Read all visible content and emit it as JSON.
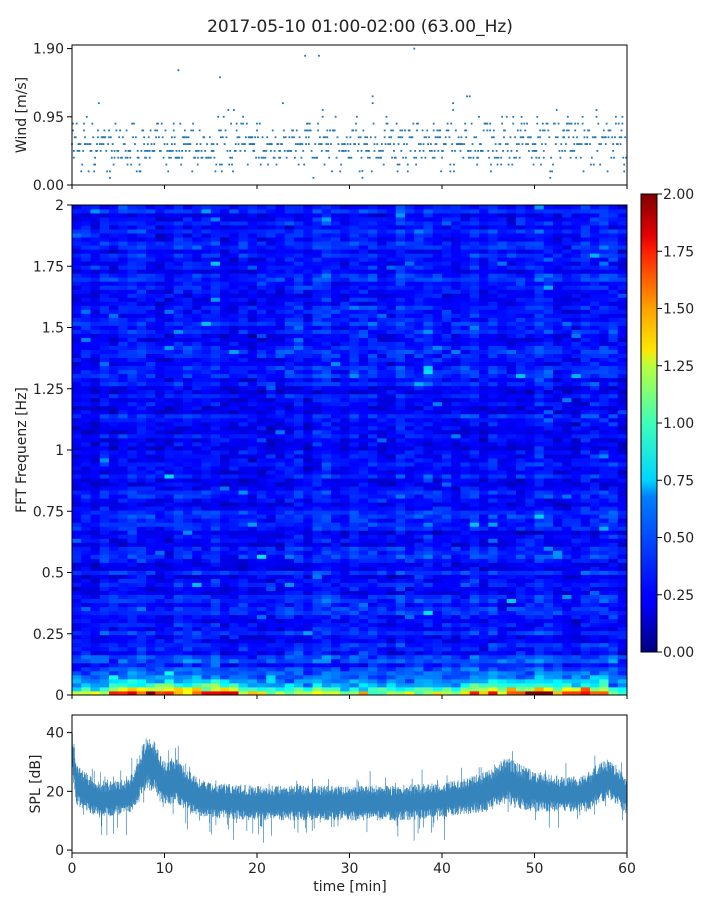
{
  "chart_data": [
    {
      "type": "scatter",
      "title": "2017-05-10 01:00-02:00 (63.00_Hz)",
      "xlabel": "",
      "ylabel": "Wind [m/s]",
      "xlim": [
        0,
        60
      ],
      "ylim": [
        0,
        1.95
      ],
      "yticks": [
        "0.00",
        "0.95",
        "1.90"
      ],
      "ytick_values": [
        0,
        0.95,
        1.9
      ],
      "color": "#1f77b4",
      "x_step_min": 0.1,
      "typical_speed_ms": 0.55,
      "quantization_ms": 0.095,
      "peaks": [
        {
          "x": 25.2,
          "y": 1.8
        },
        {
          "x": 26.7,
          "y": 1.8
        },
        {
          "x": 37.0,
          "y": 1.9
        },
        {
          "x": 11.5,
          "y": 1.6
        },
        {
          "x": 16.0,
          "y": 1.5
        }
      ]
    },
    {
      "type": "heatmap",
      "xlabel": "",
      "ylabel": "FFT Frequenz [Hz]",
      "xlim": [
        0,
        60
      ],
      "ylim": [
        0,
        2
      ],
      "yticks": [
        "0",
        "0.25",
        "0.5",
        "0.75",
        "1",
        "1.25",
        "1.5",
        "1.75",
        "2"
      ],
      "ytick_values": [
        0,
        0.25,
        0.5,
        0.75,
        1,
        1.25,
        1.5,
        1.75,
        2
      ],
      "colormap": "jet",
      "colorbar": {
        "min": 0,
        "max": 2,
        "ticks": [
          "0.00",
          "0.25",
          "0.50",
          "0.75",
          "1.00",
          "1.25",
          "1.50",
          "1.75",
          "2.00"
        ],
        "tick_values": [
          0,
          0.25,
          0.5,
          0.75,
          1,
          1.25,
          1.5,
          1.75,
          2
        ]
      },
      "background_level": 0.25,
      "low_frequency_band_hz": [
        0,
        0.2
      ],
      "low_frequency_peak_level": 1.9
    },
    {
      "type": "area",
      "xlabel": "time [min]",
      "ylabel": "SPL [dB]",
      "xlim": [
        0,
        60
      ],
      "ylim": [
        -1,
        46
      ],
      "xticks": [
        "0",
        "10",
        "20",
        "30",
        "40",
        "50",
        "60"
      ],
      "xtick_values": [
        0,
        10,
        20,
        30,
        40,
        50,
        60
      ],
      "yticks": [
        "0",
        "20",
        "40"
      ],
      "ytick_values": [
        0,
        20,
        40
      ],
      "color": "#1f77b4",
      "envelope": {
        "t_min": [
          0,
          0.5,
          3,
          6,
          7,
          8,
          9,
          10,
          11,
          13,
          15,
          20,
          25,
          30,
          35,
          40,
          42,
          45,
          47,
          48,
          50,
          53,
          55,
          56,
          57,
          58,
          59,
          60
        ],
        "center_db": [
          34,
          22,
          17,
          18,
          22,
          30,
          28,
          22,
          24,
          19,
          17,
          16,
          16,
          16,
          16,
          17,
          18,
          20,
          24,
          22,
          20,
          19,
          19,
          20,
          23,
          24,
          22,
          18
        ],
        "spread_db": [
          8,
          7,
          6,
          6,
          7,
          9,
          9,
          8,
          8,
          7,
          6,
          6,
          6,
          6,
          6,
          6,
          6,
          7,
          8,
          8,
          7,
          6,
          6,
          7,
          7,
          7,
          7,
          6
        ]
      }
    }
  ]
}
